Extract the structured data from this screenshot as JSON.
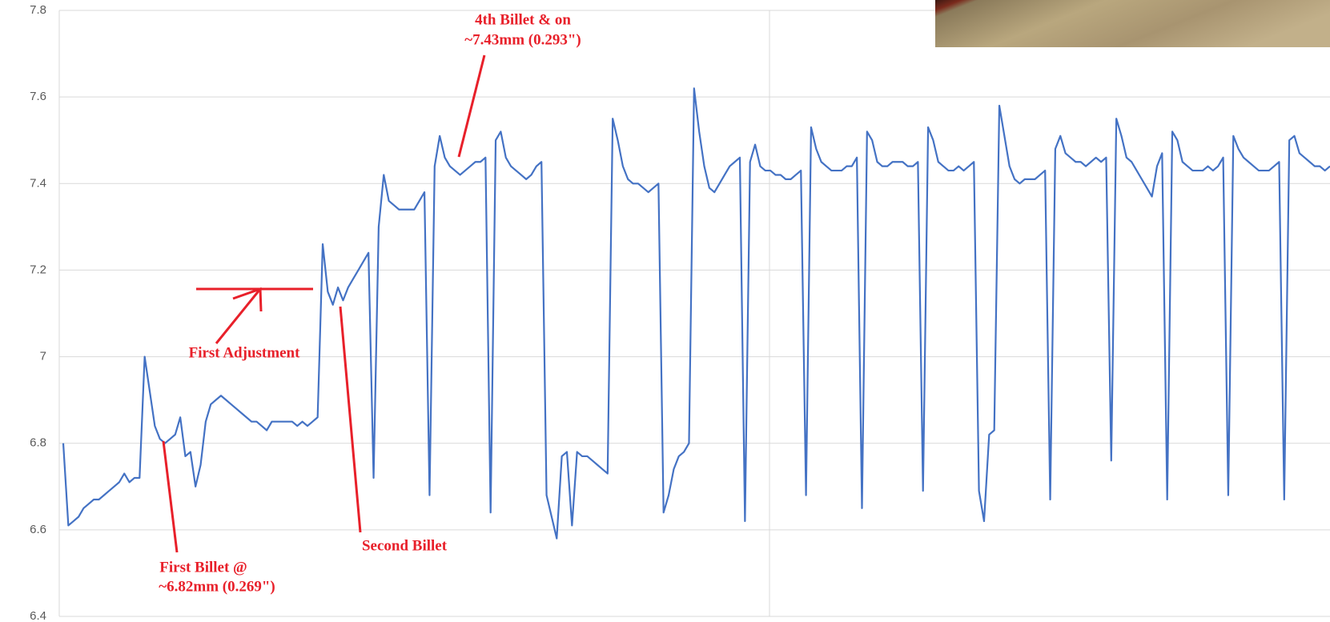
{
  "chart_data": {
    "type": "line",
    "color": "#4472c4",
    "ylim": [
      6.4,
      7.8
    ],
    "yticks": [
      6.4,
      6.6,
      6.8,
      7,
      7.2,
      7.4,
      7.6,
      7.8
    ],
    "grid": true,
    "annotations": [
      "4th Billet & on",
      "~7.43mm (0.293\")",
      "First Adjustment",
      "First Billet @",
      "~6.82mm (0.269\")",
      "Second Billet"
    ],
    "values": [
      6.8,
      6.61,
      6.62,
      6.63,
      6.65,
      6.66,
      6.67,
      6.67,
      6.68,
      6.69,
      6.7,
      6.71,
      6.73,
      6.71,
      6.72,
      6.72,
      7.0,
      6.92,
      6.84,
      6.81,
      6.8,
      6.81,
      6.82,
      6.86,
      6.77,
      6.78,
      6.7,
      6.75,
      6.85,
      6.89,
      6.9,
      6.91,
      6.9,
      6.89,
      6.88,
      6.87,
      6.86,
      6.85,
      6.85,
      6.84,
      6.83,
      6.85,
      6.85,
      6.85,
      6.85,
      6.85,
      6.84,
      6.85,
      6.84,
      6.85,
      6.86,
      7.26,
      7.15,
      7.12,
      7.16,
      7.13,
      7.16,
      7.18,
      7.2,
      7.22,
      7.24,
      6.72,
      7.3,
      7.42,
      7.36,
      7.35,
      7.34,
      7.34,
      7.34,
      7.34,
      7.36,
      7.38,
      6.68,
      7.44,
      7.51,
      7.46,
      7.44,
      7.43,
      7.42,
      7.43,
      7.44,
      7.45,
      7.45,
      7.46,
      6.64,
      7.5,
      7.52,
      7.46,
      7.44,
      7.43,
      7.42,
      7.41,
      7.42,
      7.44,
      7.45,
      6.68,
      6.63,
      6.58,
      6.77,
      6.78,
      6.61,
      6.78,
      6.77,
      6.77,
      6.76,
      6.75,
      6.74,
      6.73,
      7.55,
      7.5,
      7.44,
      7.41,
      7.4,
      7.4,
      7.39,
      7.38,
      7.39,
      7.4,
      6.64,
      6.68,
      6.74,
      6.77,
      6.78,
      6.8,
      7.62,
      7.52,
      7.44,
      7.39,
      7.38,
      7.4,
      7.42,
      7.44,
      7.45,
      7.46,
      6.62,
      7.45,
      7.49,
      7.44,
      7.43,
      7.43,
      7.42,
      7.42,
      7.41,
      7.41,
      7.42,
      7.43,
      6.68,
      7.53,
      7.48,
      7.45,
      7.44,
      7.43,
      7.43,
      7.43,
      7.44,
      7.44,
      7.46,
      6.65,
      7.52,
      7.5,
      7.45,
      7.44,
      7.44,
      7.45,
      7.45,
      7.45,
      7.44,
      7.44,
      7.45,
      6.69,
      7.53,
      7.5,
      7.45,
      7.44,
      7.43,
      7.43,
      7.44,
      7.43,
      7.44,
      7.45,
      6.69,
      6.62,
      6.82,
      6.83,
      7.58,
      7.51,
      7.44,
      7.41,
      7.4,
      7.41,
      7.41,
      7.41,
      7.42,
      7.43,
      6.67,
      7.48,
      7.51,
      7.47,
      7.46,
      7.45,
      7.45,
      7.44,
      7.45,
      7.46,
      7.45,
      7.46,
      6.76,
      7.55,
      7.51,
      7.46,
      7.45,
      7.43,
      7.41,
      7.39,
      7.37,
      7.44,
      7.47,
      6.67,
      7.52,
      7.5,
      7.45,
      7.44,
      7.43,
      7.43,
      7.43,
      7.44,
      7.43,
      7.44,
      7.46,
      6.68,
      7.51,
      7.48,
      7.46,
      7.45,
      7.44,
      7.43,
      7.43,
      7.43,
      7.44,
      7.45,
      6.67,
      7.5,
      7.51,
      7.47,
      7.46,
      7.45,
      7.44,
      7.44,
      7.43,
      7.44
    ]
  }
}
